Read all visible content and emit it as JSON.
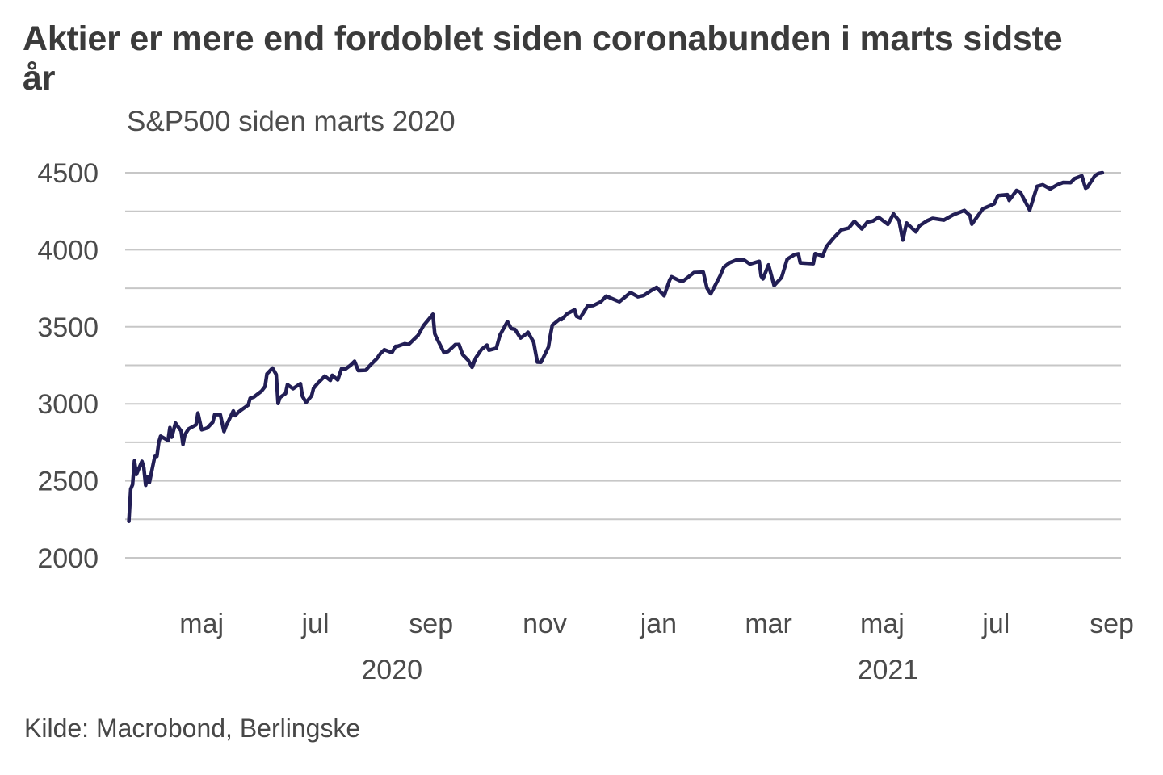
{
  "title_line1": "Aktier er mere end fordoblet siden coronabunden i marts sidste",
  "title_line2": "år",
  "subtitle": "S&P500 siden marts 2020",
  "source": "Kilde: Macrobond, Berlingske",
  "chart_data": {
    "type": "line",
    "title": "S&P500 siden marts 2020",
    "xlabel": "",
    "ylabel": "",
    "grid": true,
    "legend": "none",
    "grid_color": "#c7c7c7",
    "axis_text_color": "#4b4b4b",
    "x_domain": [
      "2020-03-21",
      "2021-09-06"
    ],
    "y_domain": [
      2000,
      4500
    ],
    "y_gridlines": [
      2000,
      2250,
      2500,
      2750,
      3000,
      3250,
      3500,
      3750,
      4000,
      4250,
      4500
    ],
    "y_tick_labels": [
      2000,
      2500,
      3000,
      3500,
      4000,
      4500
    ],
    "x_ticks": [
      {
        "date": "2020-05-01",
        "label": "maj"
      },
      {
        "date": "2020-07-01",
        "label": "jul"
      },
      {
        "date": "2020-09-01",
        "label": "sep"
      },
      {
        "date": "2020-11-01",
        "label": "nov"
      },
      {
        "date": "2021-01-01",
        "label": "jan"
      },
      {
        "date": "2021-03-01",
        "label": "mar"
      },
      {
        "date": "2021-05-01",
        "label": "maj"
      },
      {
        "date": "2021-07-01",
        "label": "jul"
      },
      {
        "date": "2021-09-01",
        "label": "sep"
      }
    ],
    "year_labels": [
      {
        "date": "2020-08-11",
        "label": "2020"
      },
      {
        "date": "2021-05-04",
        "label": "2021"
      }
    ],
    "series": [
      {
        "name": "S&P 500",
        "color": "#221e55",
        "width": 4.5
      }
    ],
    "points": [
      [
        "2020-03-23",
        2237
      ],
      [
        "2020-03-24",
        2447
      ],
      [
        "2020-03-25",
        2476
      ],
      [
        "2020-03-26",
        2630
      ],
      [
        "2020-03-27",
        2541
      ],
      [
        "2020-03-30",
        2627
      ],
      [
        "2020-03-31",
        2585
      ],
      [
        "2020-04-01",
        2471
      ],
      [
        "2020-04-02",
        2527
      ],
      [
        "2020-04-03",
        2489
      ],
      [
        "2020-04-06",
        2664
      ],
      [
        "2020-04-07",
        2659
      ],
      [
        "2020-04-08",
        2750
      ],
      [
        "2020-04-09",
        2790
      ],
      [
        "2020-04-13",
        2762
      ],
      [
        "2020-04-14",
        2846
      ],
      [
        "2020-04-15",
        2783
      ],
      [
        "2020-04-17",
        2875
      ],
      [
        "2020-04-20",
        2823
      ],
      [
        "2020-04-21",
        2737
      ],
      [
        "2020-04-22",
        2799
      ],
      [
        "2020-04-24",
        2837
      ],
      [
        "2020-04-28",
        2863
      ],
      [
        "2020-04-29",
        2940
      ],
      [
        "2020-05-01",
        2831
      ],
      [
        "2020-05-04",
        2843
      ],
      [
        "2020-05-07",
        2881
      ],
      [
        "2020-05-08",
        2930
      ],
      [
        "2020-05-11",
        2930
      ],
      [
        "2020-05-13",
        2820
      ],
      [
        "2020-05-14",
        2853
      ],
      [
        "2020-05-18",
        2954
      ],
      [
        "2020-05-19",
        2923
      ],
      [
        "2020-05-21",
        2949
      ],
      [
        "2020-05-26",
        2992
      ],
      [
        "2020-05-27",
        3036
      ],
      [
        "2020-05-29",
        3044
      ],
      [
        "2020-06-02",
        3081
      ],
      [
        "2020-06-04",
        3112
      ],
      [
        "2020-06-05",
        3194
      ],
      [
        "2020-06-08",
        3232
      ],
      [
        "2020-06-10",
        3190
      ],
      [
        "2020-06-11",
        3002
      ],
      [
        "2020-06-12",
        3041
      ],
      [
        "2020-06-15",
        3067
      ],
      [
        "2020-06-16",
        3125
      ],
      [
        "2020-06-19",
        3098
      ],
      [
        "2020-06-23",
        3131
      ],
      [
        "2020-06-24",
        3050
      ],
      [
        "2020-06-26",
        3009
      ],
      [
        "2020-06-29",
        3053
      ],
      [
        "2020-06-30",
        3100
      ],
      [
        "2020-07-02",
        3130
      ],
      [
        "2020-07-06",
        3180
      ],
      [
        "2020-07-09",
        3152
      ],
      [
        "2020-07-10",
        3185
      ],
      [
        "2020-07-13",
        3155
      ],
      [
        "2020-07-15",
        3227
      ],
      [
        "2020-07-17",
        3225
      ],
      [
        "2020-07-20",
        3252
      ],
      [
        "2020-07-22",
        3276
      ],
      [
        "2020-07-24",
        3216
      ],
      [
        "2020-07-28",
        3218
      ],
      [
        "2020-07-30",
        3246
      ],
      [
        "2020-08-03",
        3294
      ],
      [
        "2020-08-05",
        3328
      ],
      [
        "2020-08-07",
        3351
      ],
      [
        "2020-08-11",
        3333
      ],
      [
        "2020-08-13",
        3373
      ],
      [
        "2020-08-14",
        3373
      ],
      [
        "2020-08-18",
        3390
      ],
      [
        "2020-08-20",
        3385
      ],
      [
        "2020-08-25",
        3444
      ],
      [
        "2020-08-28",
        3508
      ],
      [
        "2020-09-02",
        3581
      ],
      [
        "2020-09-03",
        3455
      ],
      [
        "2020-09-04",
        3427
      ],
      [
        "2020-09-08",
        3332
      ],
      [
        "2020-09-10",
        3339
      ],
      [
        "2020-09-14",
        3384
      ],
      [
        "2020-09-16",
        3385
      ],
      [
        "2020-09-18",
        3319
      ],
      [
        "2020-09-21",
        3281
      ],
      [
        "2020-09-23",
        3237
      ],
      [
        "2020-09-25",
        3298
      ],
      [
        "2020-09-28",
        3352
      ],
      [
        "2020-10-01",
        3381
      ],
      [
        "2020-10-02",
        3348
      ],
      [
        "2020-10-06",
        3361
      ],
      [
        "2020-10-08",
        3447
      ],
      [
        "2020-10-12",
        3534
      ],
      [
        "2020-10-14",
        3489
      ],
      [
        "2020-10-16",
        3484
      ],
      [
        "2020-10-19",
        3427
      ],
      [
        "2020-10-22",
        3453
      ],
      [
        "2020-10-23",
        3465
      ],
      [
        "2020-10-26",
        3401
      ],
      [
        "2020-10-28",
        3271
      ],
      [
        "2020-10-30",
        3270
      ],
      [
        "2020-11-03",
        3369
      ],
      [
        "2020-11-04",
        3443
      ],
      [
        "2020-11-05",
        3510
      ],
      [
        "2020-11-09",
        3550
      ],
      [
        "2020-11-10",
        3546
      ],
      [
        "2020-11-13",
        3585
      ],
      [
        "2020-11-17",
        3610
      ],
      [
        "2020-11-18",
        3568
      ],
      [
        "2020-11-20",
        3558
      ],
      [
        "2020-11-24",
        3635
      ],
      [
        "2020-11-27",
        3638
      ],
      [
        "2020-12-01",
        3662
      ],
      [
        "2020-12-04",
        3699
      ],
      [
        "2020-12-09",
        3673
      ],
      [
        "2020-12-11",
        3663
      ],
      [
        "2020-12-17",
        3722
      ],
      [
        "2020-12-21",
        3695
      ],
      [
        "2020-12-24",
        3703
      ],
      [
        "2020-12-28",
        3735
      ],
      [
        "2020-12-31",
        3756
      ],
      [
        "2021-01-04",
        3701
      ],
      [
        "2021-01-07",
        3804
      ],
      [
        "2021-01-08",
        3825
      ],
      [
        "2021-01-12",
        3801
      ],
      [
        "2021-01-14",
        3795
      ],
      [
        "2021-01-20",
        3852
      ],
      [
        "2021-01-25",
        3855
      ],
      [
        "2021-01-27",
        3751
      ],
      [
        "2021-01-29",
        3714
      ],
      [
        "2021-02-03",
        3830
      ],
      [
        "2021-02-05",
        3887
      ],
      [
        "2021-02-08",
        3915
      ],
      [
        "2021-02-12",
        3935
      ],
      [
        "2021-02-16",
        3933
      ],
      [
        "2021-02-19",
        3907
      ],
      [
        "2021-02-24",
        3925
      ],
      [
        "2021-02-25",
        3829
      ],
      [
        "2021-02-26",
        3811
      ],
      [
        "2021-03-01",
        3902
      ],
      [
        "2021-03-04",
        3768
      ],
      [
        "2021-03-08",
        3821
      ],
      [
        "2021-03-11",
        3939
      ],
      [
        "2021-03-15",
        3969
      ],
      [
        "2021-03-17",
        3974
      ],
      [
        "2021-03-18",
        3915
      ],
      [
        "2021-03-23",
        3911
      ],
      [
        "2021-03-25",
        3910
      ],
      [
        "2021-03-26",
        3975
      ],
      [
        "2021-03-30",
        3959
      ],
      [
        "2021-04-01",
        4020
      ],
      [
        "2021-04-05",
        4078
      ],
      [
        "2021-04-09",
        4129
      ],
      [
        "2021-04-13",
        4141
      ],
      [
        "2021-04-16",
        4185
      ],
      [
        "2021-04-20",
        4135
      ],
      [
        "2021-04-23",
        4180
      ],
      [
        "2021-04-26",
        4187
      ],
      [
        "2021-04-29",
        4211
      ],
      [
        "2021-05-04",
        4165
      ],
      [
        "2021-05-07",
        4233
      ],
      [
        "2021-05-10",
        4188
      ],
      [
        "2021-05-12",
        4063
      ],
      [
        "2021-05-14",
        4174
      ],
      [
        "2021-05-19",
        4116
      ],
      [
        "2021-05-21",
        4156
      ],
      [
        "2021-05-25",
        4188
      ],
      [
        "2021-05-28",
        4204
      ],
      [
        "2021-06-03",
        4193
      ],
      [
        "2021-06-08",
        4227
      ],
      [
        "2021-06-14",
        4255
      ],
      [
        "2021-06-17",
        4222
      ],
      [
        "2021-06-18",
        4166
      ],
      [
        "2021-06-24",
        4266
      ],
      [
        "2021-06-30",
        4298
      ],
      [
        "2021-07-02",
        4352
      ],
      [
        "2021-07-07",
        4358
      ],
      [
        "2021-07-08",
        4321
      ],
      [
        "2021-07-12",
        4385
      ],
      [
        "2021-07-14",
        4374
      ],
      [
        "2021-07-19",
        4258
      ],
      [
        "2021-07-23",
        4412
      ],
      [
        "2021-07-26",
        4422
      ],
      [
        "2021-07-30",
        4395
      ],
      [
        "2021-08-03",
        4423
      ],
      [
        "2021-08-06",
        4437
      ],
      [
        "2021-08-10",
        4436
      ],
      [
        "2021-08-12",
        4461
      ],
      [
        "2021-08-16",
        4480
      ],
      [
        "2021-08-18",
        4400
      ],
      [
        "2021-08-19",
        4406
      ],
      [
        "2021-08-23",
        4480
      ],
      [
        "2021-08-25",
        4496
      ],
      [
        "2021-08-27",
        4500
      ]
    ]
  }
}
